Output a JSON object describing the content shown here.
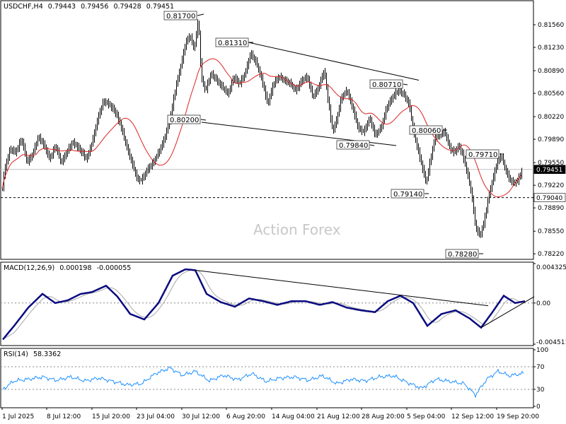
{
  "chart_data": [
    {
      "type": "candlestick",
      "panel": "price",
      "header": {
        "symbol": "USDCHF,H4",
        "open": "0.79443",
        "high": "0.79456",
        "low": "0.79428",
        "close": "0.79451"
      },
      "watermark": "Action Forex",
      "y_ticks": [
        "0.81560",
        "0.81230",
        "0.80890",
        "0.80560",
        "0.80220",
        "0.79890",
        "0.79550",
        "0.79220",
        "0.78890",
        "0.78550",
        "0.78220"
      ],
      "ylim": [
        0.7815,
        0.819
      ],
      "current_price": "0.79451",
      "support_level": "0.79040",
      "swing_labels": [
        "0.81700",
        "0.81310",
        "0.80200",
        "0.79840",
        "0.80710",
        "0.80060",
        "0.79710",
        "0.79140",
        "0.78280"
      ],
      "close_path": [
        [
          0,
          0.789
        ],
        [
          6,
          0.7945
        ],
        [
          14,
          0.7975
        ],
        [
          22,
          0.797
        ],
        [
          30,
          0.799
        ],
        [
          38,
          0.7955
        ],
        [
          46,
          0.7968
        ],
        [
          54,
          0.7993
        ],
        [
          62,
          0.798
        ],
        [
          70,
          0.796
        ],
        [
          78,
          0.798
        ],
        [
          86,
          0.7955
        ],
        [
          94,
          0.797
        ],
        [
          102,
          0.7985
        ],
        [
          112,
          0.7975
        ],
        [
          122,
          0.796
        ],
        [
          130,
          0.7985
        ],
        [
          138,
          0.802
        ],
        [
          146,
          0.8045
        ],
        [
          154,
          0.804
        ],
        [
          162,
          0.803
        ],
        [
          170,
          0.801
        ],
        [
          178,
          0.798
        ],
        [
          186,
          0.7955
        ],
        [
          194,
          0.793
        ],
        [
          200,
          0.793
        ],
        [
          208,
          0.7945
        ],
        [
          216,
          0.7955
        ],
        [
          224,
          0.797
        ],
        [
          232,
          0.799
        ],
        [
          240,
          0.802
        ],
        [
          248,
          0.8065
        ],
        [
          256,
          0.81
        ],
        [
          262,
          0.813
        ],
        [
          268,
          0.814
        ],
        [
          274,
          0.812
        ],
        [
          280,
          0.8165
        ],
        [
          284,
          0.808
        ],
        [
          290,
          0.806
        ],
        [
          298,
          0.8085
        ],
        [
          306,
          0.8075
        ],
        [
          314,
          0.8065
        ],
        [
          322,
          0.8055
        ],
        [
          330,
          0.808
        ],
        [
          338,
          0.807
        ],
        [
          346,
          0.8085
        ],
        [
          354,
          0.8115
        ],
        [
          362,
          0.81
        ],
        [
          370,
          0.8075
        ],
        [
          378,
          0.804
        ],
        [
          386,
          0.807
        ],
        [
          394,
          0.808
        ],
        [
          402,
          0.8075
        ],
        [
          410,
          0.807
        ],
        [
          418,
          0.806
        ],
        [
          426,
          0.8075
        ],
        [
          434,
          0.808
        ],
        [
          442,
          0.805
        ],
        [
          450,
          0.8065
        ],
        [
          458,
          0.809
        ],
        [
          464,
          0.804
        ],
        [
          470,
          0.8
        ],
        [
          476,
          0.802
        ],
        [
          482,
          0.805
        ],
        [
          490,
          0.806
        ],
        [
          498,
          0.8035
        ],
        [
          506,
          0.8005
        ],
        [
          514,
          0.8
        ],
        [
          522,
          0.802
        ],
        [
          530,
          0.7995
        ],
        [
          538,
          0.8005
        ],
        [
          546,
          0.8035
        ],
        [
          554,
          0.805
        ],
        [
          562,
          0.806
        ],
        [
          570,
          0.8055
        ],
        [
          578,
          0.804
        ],
        [
          584,
          0.8
        ],
        [
          590,
          0.7975
        ],
        [
          596,
          0.795
        ],
        [
          602,
          0.7925
        ],
        [
          608,
          0.796
        ],
        [
          614,
          0.799
        ],
        [
          620,
          0.7995
        ],
        [
          628,
          0.8
        ],
        [
          636,
          0.7975
        ],
        [
          642,
          0.797
        ],
        [
          648,
          0.798
        ],
        [
          654,
          0.7965
        ],
        [
          660,
          0.794
        ],
        [
          666,
          0.791
        ],
        [
          672,
          0.786
        ],
        [
          678,
          0.7848
        ],
        [
          684,
          0.787
        ],
        [
          690,
          0.7905
        ],
        [
          696,
          0.793
        ],
        [
          702,
          0.7955
        ],
        [
          708,
          0.7965
        ],
        [
          714,
          0.7945
        ],
        [
          720,
          0.793
        ],
        [
          726,
          0.7925
        ],
        [
          732,
          0.793
        ],
        [
          738,
          0.7945
        ]
      ],
      "series": [
        {
          "name": "",
          "role": "moving-average",
          "color": "#dd2222"
        }
      ]
    },
    {
      "type": "line",
      "panel": "macd",
      "header": {
        "label": "MACD(12,26,9)",
        "main": "0.000198",
        "signal": "-0.000055"
      },
      "y_ticks": [
        "0.004325",
        "0.00",
        "-0.004511"
      ],
      "ylim": [
        -0.00451,
        0.004325
      ],
      "main_path": [
        [
          4,
          -0.004
        ],
        [
          20,
          -0.0025
        ],
        [
          40,
          -0.0005
        ],
        [
          60,
          0.001
        ],
        [
          78,
          0.0
        ],
        [
          96,
          0.0003
        ],
        [
          114,
          0.001
        ],
        [
          130,
          0.0012
        ],
        [
          150,
          0.0019
        ],
        [
          166,
          0.0007
        ],
        [
          184,
          -0.0012
        ],
        [
          204,
          -0.0018
        ],
        [
          224,
          0.0
        ],
        [
          244,
          0.003
        ],
        [
          262,
          0.0037
        ],
        [
          276,
          0.0036
        ],
        [
          292,
          0.001
        ],
        [
          312,
          0.0001
        ],
        [
          332,
          -0.0004
        ],
        [
          352,
          0.0005
        ],
        [
          372,
          0.0002
        ],
        [
          392,
          -0.0002
        ],
        [
          412,
          0.0002
        ],
        [
          432,
          0.0002
        ],
        [
          452,
          -0.0002
        ],
        [
          470,
          0.0001
        ],
        [
          490,
          -0.0005
        ],
        [
          510,
          -0.0008
        ],
        [
          530,
          -0.001
        ],
        [
          548,
          0.0002
        ],
        [
          566,
          0.0008
        ],
        [
          584,
          0.0
        ],
        [
          604,
          -0.0025
        ],
        [
          624,
          -0.0012
        ],
        [
          644,
          -0.0008
        ],
        [
          664,
          -0.0017
        ],
        [
          680,
          -0.0027
        ],
        [
          696,
          -0.001
        ],
        [
          712,
          0.0008
        ],
        [
          728,
          0.0
        ],
        [
          742,
          0.0002
        ]
      ],
      "trendlines": [
        {
          "from": [
            276,
            0.0036
          ],
          "to": [
            690,
            -0.0003
          ]
        },
        {
          "from": [
            680,
            -0.0027
          ],
          "to": [
            755,
            0.0007
          ]
        }
      ]
    },
    {
      "type": "line",
      "panel": "rsi",
      "header": {
        "label": "RSI(14)",
        "value": "58.3362"
      },
      "y_ticks": [
        "100",
        "70",
        "30",
        "0"
      ],
      "ylim": [
        0,
        100
      ],
      "levels": [
        70,
        30
      ],
      "path": [
        [
          4,
          30
        ],
        [
          20,
          45
        ],
        [
          40,
          48
        ],
        [
          60,
          52
        ],
        [
          80,
          46
        ],
        [
          100,
          52
        ],
        [
          120,
          45
        ],
        [
          140,
          50
        ],
        [
          160,
          44
        ],
        [
          180,
          38
        ],
        [
          200,
          40
        ],
        [
          220,
          58
        ],
        [
          240,
          68
        ],
        [
          258,
          55
        ],
        [
          276,
          62
        ],
        [
          296,
          45
        ],
        [
          316,
          55
        ],
        [
          336,
          47
        ],
        [
          356,
          58
        ],
        [
          376,
          44
        ],
        [
          396,
          50
        ],
        [
          416,
          52
        ],
        [
          436,
          46
        ],
        [
          456,
          54
        ],
        [
          476,
          40
        ],
        [
          496,
          48
        ],
        [
          516,
          45
        ],
        [
          536,
          52
        ],
        [
          556,
          54
        ],
        [
          576,
          42
        ],
        [
          596,
          32
        ],
        [
          616,
          48
        ],
        [
          636,
          44
        ],
        [
          656,
          40
        ],
        [
          672,
          20
        ],
        [
          688,
          48
        ],
        [
          704,
          62
        ],
        [
          720,
          54
        ],
        [
          738,
          58
        ]
      ]
    },
    {
      "type": "axis",
      "panel": "time",
      "x_labels": [
        "1 Jul 2025",
        "8 Jul 12:00",
        "15 Jul 20:00",
        "23 Jul 04:00",
        "30 Jul 12:00",
        "6 Aug 20:00",
        "14 Aug 04:00",
        "21 Aug 12:00",
        "28 Aug 20:00",
        "5 Sep 04:00",
        "12 Sep 12:00",
        "19 Sep 20:00"
      ]
    }
  ]
}
